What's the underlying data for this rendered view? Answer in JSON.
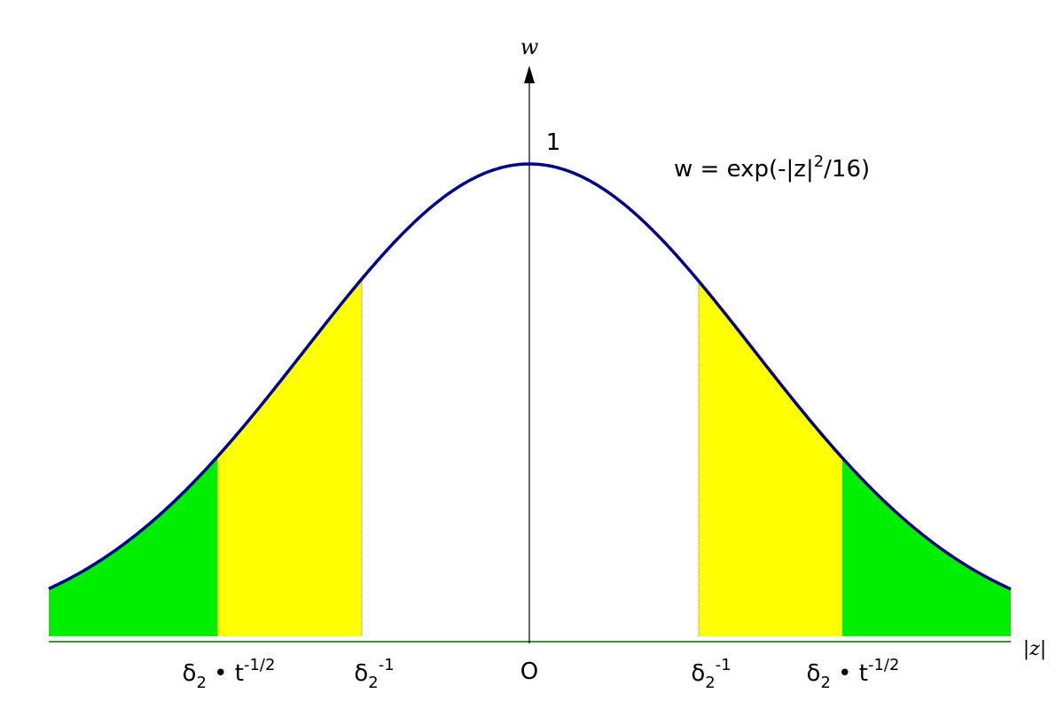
{
  "diagram": {
    "axis_labels": {
      "y": "w",
      "x": "|z|"
    },
    "peak_label": "1",
    "origin_label": "O",
    "formula": {
      "text": "w = exp(-|z|",
      "exponent": "2",
      "tail": "/16)"
    },
    "inner_marker": {
      "base": "δ",
      "sub": "2",
      "sup": "-1"
    },
    "outer_marker": {
      "base": "δ",
      "sub": "2",
      "mid": " • t",
      "sup": "-1/2"
    },
    "colors": {
      "curve": "#00008b",
      "inner_band": "#ffff00",
      "outer_band": "#00ee00",
      "axis": "#000000",
      "baseline": "#006400"
    }
  }
}
